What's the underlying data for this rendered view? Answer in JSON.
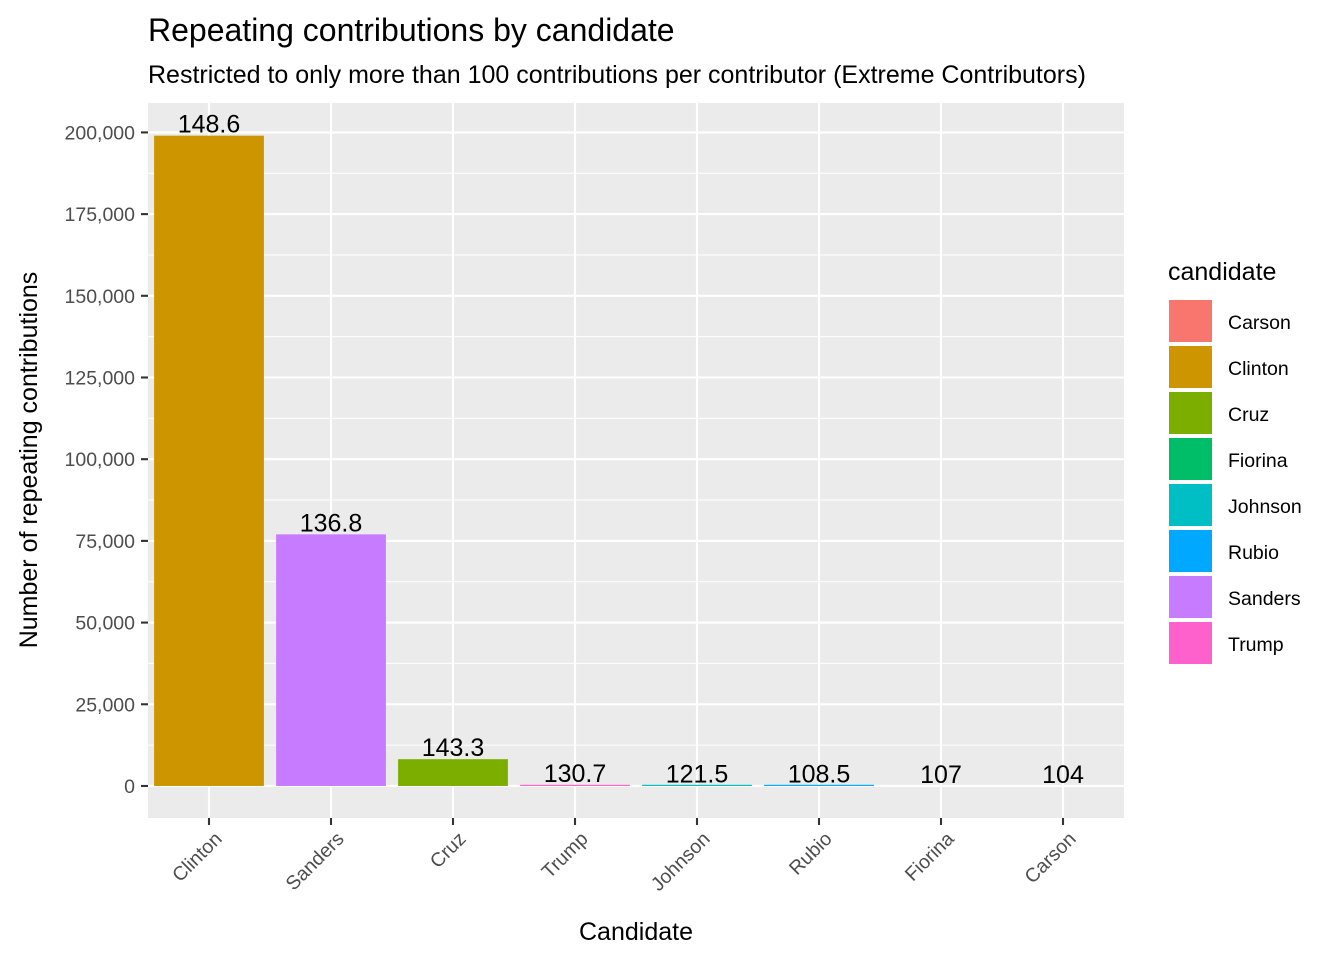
{
  "chart_data": {
    "type": "bar",
    "title": "Repeating contributions by candidate",
    "subtitle": "Restricted to only more than 100 contributions per contributor (Extreme Contributors)",
    "xlabel": "Candidate",
    "ylabel": "Number of repeating contributions",
    "ylim": [
      -9800,
      209000
    ],
    "yticks": [
      0,
      25000,
      50000,
      75000,
      100000,
      125000,
      150000,
      175000,
      200000
    ],
    "ytick_labels": [
      "0",
      "25,000",
      "50,000",
      "75,000",
      "100,000",
      "125,000",
      "150,000",
      "175,000",
      "200,000"
    ],
    "categories": [
      "Clinton",
      "Sanders",
      "Cruz",
      "Trump",
      "Johnson",
      "Rubio",
      "Fiorina",
      "Carson"
    ],
    "values": [
      199000,
      77000,
      8200,
      300,
      200,
      200,
      0,
      0
    ],
    "bar_labels": [
      "148.6",
      "136.8",
      "143.3",
      "130.7",
      "121.5",
      "108.5",
      "107",
      "104"
    ],
    "colors": [
      "#CD9600",
      "#C77CFF",
      "#7CAE00",
      "#FF61CC",
      "#00BFC4",
      "#00A9FF",
      "#00BE67",
      "#F8766D"
    ],
    "grid": true,
    "legend": {
      "title": "candidate",
      "position": "right",
      "items": [
        {
          "label": "Carson",
          "color": "#F8766D"
        },
        {
          "label": "Clinton",
          "color": "#CD9600"
        },
        {
          "label": "Cruz",
          "color": "#7CAE00"
        },
        {
          "label": "Fiorina",
          "color": "#00BE67"
        },
        {
          "label": "Johnson",
          "color": "#00BFC4"
        },
        {
          "label": "Rubio",
          "color": "#00A9FF"
        },
        {
          "label": "Sanders",
          "color": "#C77CFF"
        },
        {
          "label": "Trump",
          "color": "#FF61CC"
        }
      ]
    }
  }
}
